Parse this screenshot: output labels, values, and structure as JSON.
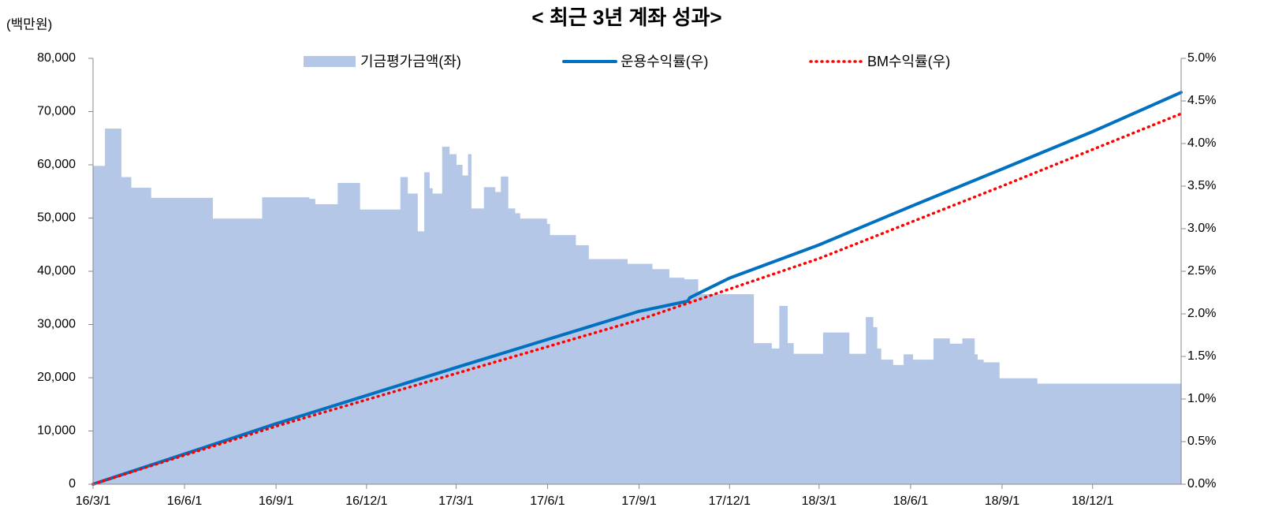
{
  "chart_data": {
    "type": "combo",
    "title": "< 최근 3년 계좌 성과>",
    "y_label": "(백만원)",
    "xlim": [
      "16/3/1",
      "19/2/28"
    ],
    "xticks": [
      "16/3/1",
      "16/6/1",
      "16/9/1",
      "16/12/1",
      "17/3/1",
      "17/6/1",
      "17/9/1",
      "17/12/1",
      "18/3/1",
      "18/6/1",
      "18/9/1",
      "18/12/1"
    ],
    "ylim": [
      0,
      80000
    ],
    "yticks": [
      0,
      {
        "value": 10000,
        "label": "10,000"
      },
      {
        "value": 20000,
        "label": "20,000"
      },
      {
        "value": 30000,
        "label": "30,000"
      },
      {
        "value": 40000,
        "label": "40,000"
      },
      {
        "value": 50000,
        "label": "50,000"
      },
      {
        "value": 60000,
        "label": "60,000"
      },
      {
        "value": 70000,
        "label": "70,000"
      },
      {
        "value": 80000,
        "label": "80,000"
      }
    ],
    "y2lim": [
      0,
      5
    ],
    "y2ticks": [
      {
        "value": 0,
        "label": "0.0%"
      },
      {
        "value": 0.5,
        "label": "0.5%"
      },
      {
        "value": 1,
        "label": "1.0%"
      },
      {
        "value": 1.5,
        "label": "1.5%"
      },
      {
        "value": 2,
        "label": "2.0%"
      },
      {
        "value": 2.5,
        "label": "2.5%"
      },
      {
        "value": 3,
        "label": "3.0%"
      },
      {
        "value": 3.5,
        "label": "3.5%"
      },
      {
        "value": 4,
        "label": "4.0%"
      },
      {
        "value": 4.5,
        "label": "4.5%"
      },
      {
        "value": 5,
        "label": "5.0%"
      }
    ],
    "legend": "top",
    "series": [
      {
        "name": "기금평가금액(좌)",
        "type": "area",
        "step": true,
        "color": "#b4c7e7",
        "x": [
          "16/3/1",
          "16/3/13",
          "16/3/29",
          "16/4/8",
          "16/4/28",
          "16/6/29",
          "16/8/18",
          "16/10/4",
          "16/10/10",
          "16/11/2",
          "16/11/24",
          "17/1/4",
          "17/1/11",
          "17/1/21",
          "17/1/28",
          "17/2/2",
          "17/2/5",
          "17/2/15",
          "17/2/22",
          "17/3/1",
          "17/3/7",
          "17/3/13",
          "17/3/16",
          "17/3/29",
          "17/4/9",
          "17/4/15",
          "17/4/22",
          "17/4/29",
          "17/5/4",
          "17/5/31",
          "17/6/3",
          "17/6/29",
          "17/7/12",
          "17/8/20",
          "17/9/14",
          "17/10/1",
          "17/10/16",
          "17/10/30",
          "17/12/25",
          "18/1/12",
          "18/1/20",
          "18/1/28",
          "18/2/3",
          "18/3/5",
          "18/3/31",
          "18/4/17",
          "18/4/24",
          "18/4/28",
          "18/5/2",
          "18/5/14",
          "18/5/25",
          "18/6/3",
          "18/6/24",
          "18/7/10",
          "18/7/23",
          "18/8/4",
          "18/8/7",
          "18/8/13",
          "18/8/29",
          "18/10/6"
        ],
        "values": [
          59800,
          66800,
          57700,
          55700,
          53800,
          49900,
          53900,
          53600,
          52600,
          56600,
          51600,
          57700,
          54600,
          47500,
          58600,
          55600,
          54600,
          63400,
          62000,
          60000,
          58000,
          62000,
          51800,
          55800,
          54900,
          57800,
          51800,
          50900,
          49900,
          48900,
          46800,
          44900,
          42300,
          41400,
          40400,
          38800,
          38500,
          35700,
          26500,
          25500,
          33500,
          26500,
          24500,
          28500,
          24500,
          31400,
          29500,
          25500,
          23400,
          22400,
          24400,
          23400,
          27400,
          26400,
          27400,
          24400,
          23400,
          22900,
          19900,
          18900
        ]
      },
      {
        "name": "운용수익률(우)",
        "type": "line",
        "axis": "y2",
        "color": "#0070c0",
        "x": [
          "16/3/1",
          "16/9/1",
          "17/3/1",
          "17/9/1",
          "17/10/20",
          "17/10/22",
          "17/12/1",
          "18/3/1",
          "18/6/1",
          "18/9/1",
          "18/12/1",
          "19/2/28"
        ],
        "values": [
          0,
          0.71,
          1.37,
          2.03,
          2.15,
          2.19,
          2.42,
          2.81,
          3.26,
          3.7,
          4.14,
          4.6
        ]
      },
      {
        "name": "BM수익률(우)",
        "type": "line",
        "dotted": true,
        "axis": "y2",
        "color": "#ff0000",
        "x": [
          "16/3/1",
          "16/9/1",
          "17/3/1",
          "17/9/1",
          "18/3/1",
          "18/9/1",
          "19/2/28"
        ],
        "values": [
          0,
          0.68,
          1.3,
          1.93,
          2.65,
          3.5,
          4.35
        ]
      }
    ]
  }
}
